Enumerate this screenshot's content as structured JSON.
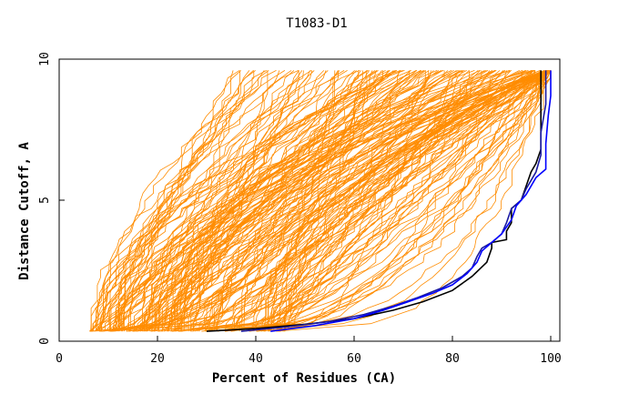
{
  "chart_data": {
    "type": "line",
    "title": "T1083-D1",
    "xlabel": "Percent of Residues (CA)",
    "ylabel": "Distance Cutoff, A",
    "xlim": [
      0,
      100
    ],
    "ylim": [
      0,
      10
    ],
    "x_ticks": [
      0,
      20,
      40,
      60,
      80,
      100
    ],
    "y_ticks": [
      0,
      5,
      10
    ],
    "grid": false,
    "legend": "none",
    "colors": {
      "background_curves": "#ff8c00",
      "highlight_1": "#000000",
      "highlight_2": "#0000ff",
      "highlight_3": "#1a1aa0",
      "highlight_accent": "#ff0000"
    },
    "background_curves": {
      "count": 200,
      "seed": 1083,
      "y_start": 0.35,
      "y_end": 9.6,
      "x_start_range": [
        6,
        46
      ],
      "x_end_range": [
        36,
        100
      ]
    },
    "highlighted_series": [
      {
        "color": "#000000",
        "points": [
          [
            30,
            0.35
          ],
          [
            40,
            0.45
          ],
          [
            50,
            0.6
          ],
          [
            60,
            0.8
          ],
          [
            68,
            1.1
          ],
          [
            74,
            1.4
          ],
          [
            80,
            1.8
          ],
          [
            84,
            2.3
          ],
          [
            87,
            2.8
          ],
          [
            88,
            3.3
          ],
          [
            88,
            3.5
          ],
          [
            91,
            3.6
          ],
          [
            91,
            3.9
          ],
          [
            92,
            4.2
          ],
          [
            92,
            4.7
          ],
          [
            94,
            5.0
          ],
          [
            95,
            5.5
          ],
          [
            96,
            6.0
          ],
          [
            97,
            6.3
          ],
          [
            98,
            6.8
          ],
          [
            98,
            8.5
          ],
          [
            98,
            9.6
          ]
        ]
      },
      {
        "color": "#1a1aa0",
        "points": [
          [
            37,
            0.35
          ],
          [
            46,
            0.5
          ],
          [
            55,
            0.7
          ],
          [
            62,
            0.95
          ],
          [
            68,
            1.25
          ],
          [
            73,
            1.55
          ],
          [
            78,
            1.9
          ],
          [
            82,
            2.3
          ],
          [
            84,
            2.6
          ],
          [
            85,
            3.0
          ],
          [
            86,
            3.3
          ],
          [
            88,
            3.5
          ],
          [
            90,
            3.8
          ],
          [
            91,
            4.2
          ],
          [
            92,
            4.7
          ],
          [
            94,
            5.0
          ],
          [
            95,
            5.4
          ],
          [
            97,
            6.0
          ],
          [
            98,
            6.6
          ],
          [
            98,
            7.4
          ],
          [
            99,
            8.4
          ],
          [
            99,
            9.6
          ]
        ]
      },
      {
        "color": "#0000ff",
        "points": [
          [
            43,
            0.35
          ],
          [
            52,
            0.55
          ],
          [
            60,
            0.8
          ],
          [
            66,
            1.1
          ],
          [
            71,
            1.4
          ],
          [
            76,
            1.7
          ],
          [
            80,
            2.0
          ],
          [
            83,
            2.4
          ],
          [
            85,
            2.8
          ],
          [
            86,
            3.2
          ],
          [
            88,
            3.5
          ],
          [
            90,
            3.8
          ],
          [
            92,
            4.3
          ],
          [
            93,
            4.8
          ],
          [
            95,
            5.2
          ],
          [
            97,
            5.8
          ],
          [
            99,
            6.1
          ],
          [
            99,
            7.0
          ],
          [
            99.5,
            8.0
          ],
          [
            100,
            8.7
          ],
          [
            100,
            9.6
          ]
        ]
      }
    ]
  }
}
